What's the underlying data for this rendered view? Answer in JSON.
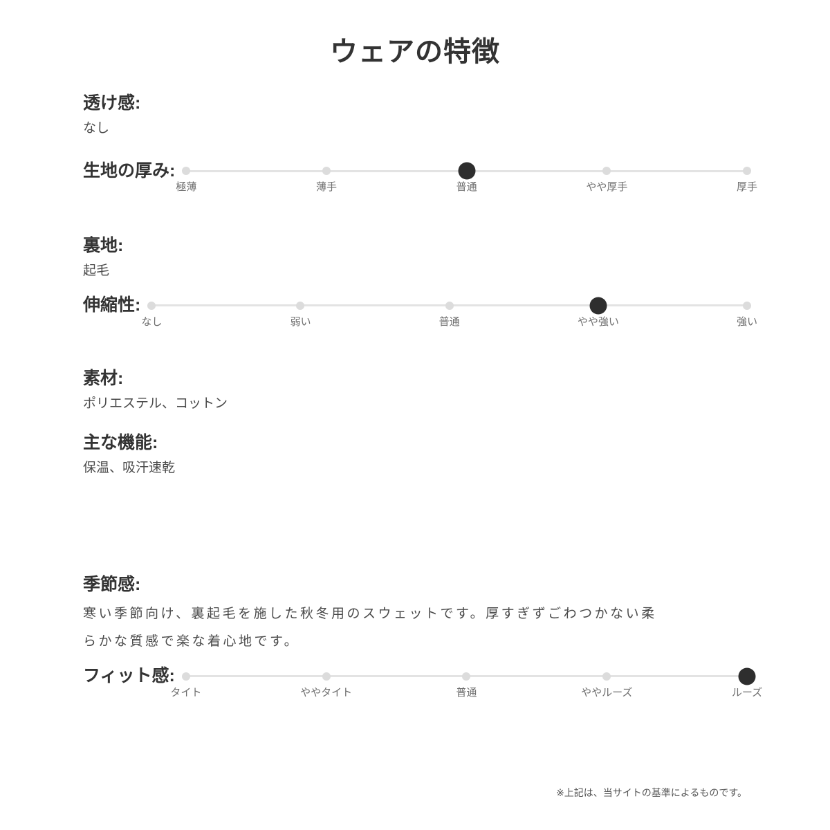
{
  "page": {
    "title": "ウェアの特徴",
    "footnote": "※上記は、当サイトの基準によるものです。"
  },
  "sections": [
    {
      "type": "text",
      "label": "透け感:",
      "value": "なし"
    },
    {
      "type": "slider",
      "label": "生地の厚み:",
      "options": [
        "極薄",
        "薄手",
        "普通",
        "やや厚手",
        "厚手"
      ],
      "selected_index": 2,
      "selected": "普通"
    },
    {
      "type": "text",
      "label": "裏地:",
      "value": "起毛"
    },
    {
      "type": "slider",
      "label": "伸縮性:",
      "options": [
        "なし",
        "弱い",
        "普通",
        "やや強い",
        "強い"
      ],
      "selected_index": 3,
      "selected": "やや強い"
    },
    {
      "type": "text",
      "label": "素材:",
      "value": "ポリエステル、コットン"
    },
    {
      "type": "text",
      "label": "主な機能:",
      "value": "保温、吸汗速乾"
    },
    {
      "type": "text",
      "label": "季節感:",
      "value": "寒い季節向け、裏起毛を施した秋冬用のスウェットです。厚すぎずごわつかない柔らかな質感で楽な着心地です。"
    },
    {
      "type": "slider",
      "label": "フィット感:",
      "options": [
        "タイト",
        "ややタイト",
        "普通",
        "ややルーズ",
        "ルーズ"
      ],
      "selected_index": 4,
      "selected": "ルーズ"
    }
  ],
  "colors": {
    "heading": "#333333",
    "value_text": "#4a4a4a",
    "tick_label": "#6e6e6e",
    "track": "#e3e3e3",
    "dot": "#dcdcdc",
    "selected_dot": "#2e2e2e"
  }
}
